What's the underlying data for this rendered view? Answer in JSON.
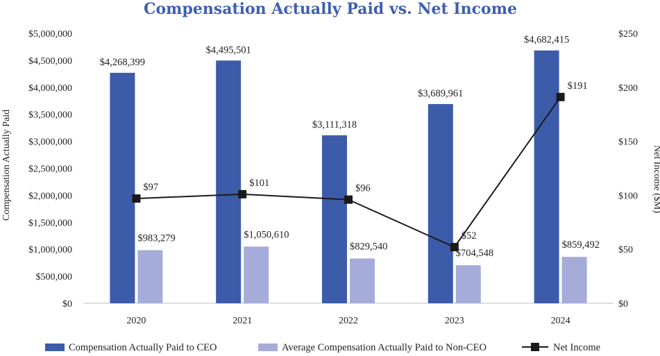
{
  "chart_data": {
    "type": "bar",
    "title": "Compensation Actually Paid vs. Net Income",
    "categories": [
      "2020",
      "2021",
      "2022",
      "2023",
      "2024"
    ],
    "ylabel": "Compensation Actually Paid",
    "y2label": "Net Income ($M)",
    "ylim": [
      0,
      5000000
    ],
    "y2lim": [
      0,
      250
    ],
    "yticks": [
      "$0",
      "$500,000",
      "$1,000,000",
      "$1,500,000",
      "$2,000,000",
      "$2,500,000",
      "$3,000,000",
      "$3,500,000",
      "$4,000,000",
      "$4,500,000",
      "$5,000,000"
    ],
    "y2ticks": [
      "$0",
      "$50",
      "$100",
      "$150",
      "$200",
      "$250"
    ],
    "series": [
      {
        "name": "Compensation Actually Paid to CEO",
        "kind": "bar",
        "color": "#3c5ca9",
        "values": [
          4268399,
          4495501,
          3111318,
          3689961,
          4682415
        ],
        "labels": [
          "$4,268,399",
          "$4,495,501",
          "$3,111,318",
          "$3,689,961",
          "$4,682,415"
        ]
      },
      {
        "name": "Average Compensation Actually Paid to Non-CEO",
        "kind": "bar",
        "color": "#a6acd9",
        "values": [
          983279,
          1050610,
          829540,
          704548,
          859492
        ],
        "labels": [
          "$983,279",
          "$1,050,610",
          "$829,540",
          "$704,548",
          "$859,492"
        ]
      },
      {
        "name": "Net Income",
        "kind": "line",
        "axis": "y2",
        "color": "#1a1a1a",
        "values": [
          97,
          101,
          96,
          52,
          191
        ],
        "labels": [
          "$97",
          "$101",
          "$96",
          "$52",
          "$191"
        ]
      }
    ],
    "legend": "bottom"
  }
}
